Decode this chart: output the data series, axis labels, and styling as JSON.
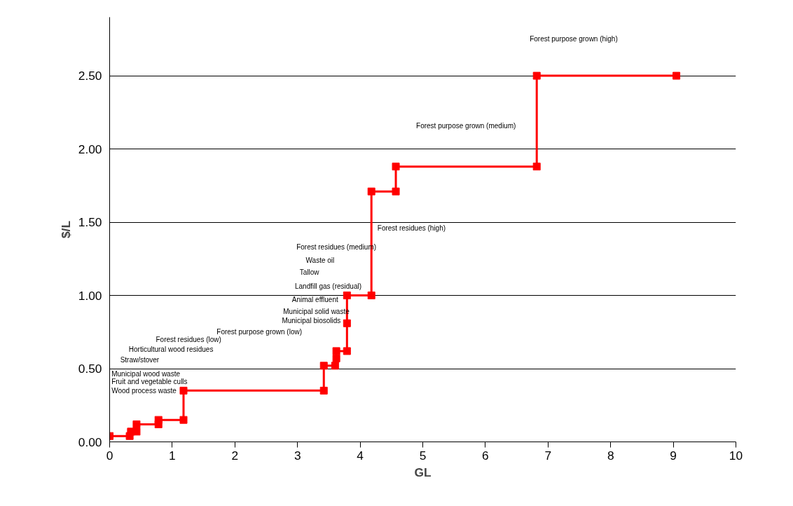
{
  "chart_data": {
    "type": "line",
    "xlabel": "GL",
    "ylabel": "$/L",
    "x": [
      0,
      0.32,
      0.34,
      0.43,
      0.43,
      0.78,
      0.78,
      1.18,
      1.18,
      3.42,
      3.42,
      3.6,
      3.62,
      3.62,
      3.79,
      3.79,
      3.79,
      4.18,
      4.18,
      4.57,
      4.57,
      6.82,
      6.82,
      9.05
    ],
    "series": [
      {
        "color": "#ff0000",
        "values": [
          0.04,
          0.04,
          0.07,
          0.07,
          0.12,
          0.12,
          0.15,
          0.15,
          0.35,
          0.35,
          0.52,
          0.52,
          0.57,
          0.62,
          0.62,
          0.81,
          1.0,
          1.0,
          1.71,
          1.71,
          1.88,
          1.88,
          2.5,
          2.5
        ]
      }
    ],
    "marker": "square",
    "line_style": "solid",
    "xlim": [
      0,
      10
    ],
    "xticks": [
      0,
      1,
      2,
      3,
      4,
      5,
      6,
      7,
      8,
      9,
      10
    ],
    "ylim": [
      0,
      2.9
    ],
    "yticks": [
      {
        "value": 0,
        "label": "0.00"
      },
      {
        "value": 0.5,
        "label": "0.50"
      },
      {
        "value": 1,
        "label": "1.00"
      },
      {
        "value": 1.5,
        "label": "1.50"
      },
      {
        "value": 2,
        "label": "2.00"
      },
      {
        "value": 2.5,
        "label": "2.50"
      }
    ],
    "grid": "y",
    "annotations": [
      "Forest purpose grown (high)",
      "Forest purpose grown (medium)",
      "Forest residues (high)",
      "Forest residues (medium)",
      "Waste oil",
      "Tallow",
      "Landfill gas (residual)",
      "Animal effluent",
      "Municipal solid waste",
      "Municipal biosolids",
      "Forest purpose grown (low)",
      "Forest residues (low)",
      "Horticultural wood residues",
      "Straw/stover",
      "Municipal wood waste",
      "Fruit and vegetable culls",
      "Wood process waste"
    ]
  }
}
